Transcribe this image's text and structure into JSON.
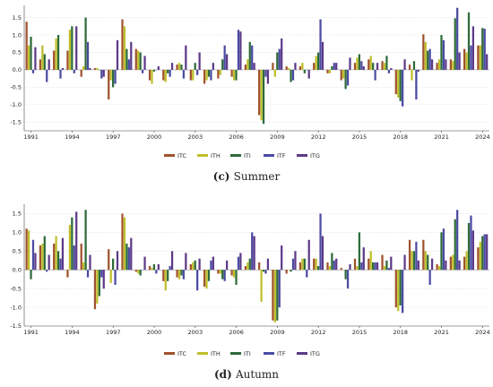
{
  "chart_data": [
    {
      "type": "bar",
      "caption_letter": "(c)",
      "caption_text": "Summer",
      "ylim": [
        -1.75,
        1.85
      ],
      "yticks": [
        -1.5,
        -1.0,
        -0.5,
        0.0,
        0.5,
        1.0,
        1.5
      ],
      "ytick_labels": [
        "-1.5",
        "-1.0",
        "-0.5",
        "0.0",
        "0.5",
        "1.0",
        "1.5"
      ],
      "grid": true,
      "legend_position": "bottom-center",
      "categories": [
        "1991",
        "1992",
        "1993",
        "1994",
        "1995",
        "1996",
        "1997",
        "1998",
        "1999",
        "2000",
        "2001",
        "2002",
        "2003",
        "2004",
        "2005",
        "2006",
        "2007",
        "2008",
        "2009",
        "2010",
        "2011",
        "2012",
        "2013",
        "2014",
        "2015",
        "2016",
        "2017",
        "2018",
        "2019",
        "2020",
        "2021",
        "2022",
        "2023",
        "2024"
      ],
      "xtick_labels": [
        "1991",
        "1994",
        "1997",
        "2000",
        "2003",
        "2006",
        "2009",
        "2012",
        "2015",
        "2018",
        "2021",
        "2024"
      ],
      "series": [
        {
          "name": "ITC",
          "color": "#a0522d",
          "values": [
            1.38,
            0.3,
            0.55,
            0.55,
            -0.2,
            0.05,
            -0.85,
            1.45,
            0.6,
            -0.3,
            -0.3,
            0.15,
            -0.3,
            -0.4,
            -0.25,
            -0.2,
            0.15,
            -1.3,
            0.2,
            0.1,
            0.1,
            0.2,
            -0.1,
            -0.3,
            0.2,
            0.3,
            0.25,
            -0.7,
            0.15,
            1.02,
            0.2,
            0.3,
            0.6,
            0.7
          ]
        },
        {
          "name": "ITH",
          "color": "#bfbf2a",
          "values": [
            0.7,
            0.7,
            0.9,
            1.15,
            0.1,
            0.05,
            -0.3,
            1.25,
            0.55,
            -0.4,
            -0.35,
            0.2,
            -0.3,
            -0.3,
            -0.15,
            -0.3,
            0.3,
            -1.45,
            -0.2,
            0.05,
            0.2,
            0.4,
            -0.1,
            -0.25,
            0.35,
            0.4,
            0.2,
            -0.8,
            -0.3,
            0.8,
            0.3,
            0.25,
            0.5,
            0.7
          ]
        },
        {
          "name": "ITI",
          "color": "#2e6b3a",
          "values": [
            0.95,
            0.45,
            1.0,
            1.25,
            1.5,
            0.0,
            -0.5,
            0.6,
            0.5,
            -0.05,
            -0.1,
            0.15,
            0.2,
            -0.2,
            0.3,
            -0.3,
            0.8,
            -1.55,
            0.5,
            -0.35,
            -0.1,
            0.5,
            0.1,
            -0.55,
            0.45,
            0.2,
            0.4,
            -0.9,
            0.25,
            0.55,
            1.0,
            1.48,
            1.65,
            1.2
          ]
        },
        {
          "name": "ITF",
          "color": "#4b4ba3",
          "values": [
            -0.1,
            -0.35,
            -0.25,
            -0.1,
            0.8,
            -0.25,
            -0.4,
            0.3,
            -0.1,
            0.0,
            -0.2,
            -0.25,
            -0.15,
            -0.3,
            0.7,
            1.15,
            0.7,
            -0.2,
            0.6,
            -0.3,
            0.0,
            1.45,
            0.2,
            -0.45,
            0.25,
            -0.3,
            -0.1,
            -1.05,
            -0.85,
            0.6,
            0.85,
            1.78,
            0.7,
            1.18
          ]
        },
        {
          "name": "ITG",
          "color": "#5d3a88",
          "values": [
            0.65,
            0.3,
            0.05,
            1.25,
            0.05,
            -0.2,
            0.85,
            0.8,
            0.4,
            0.1,
            0.2,
            0.7,
            0.5,
            0.2,
            0.45,
            1.1,
            0.2,
            -0.4,
            0.9,
            0.2,
            -0.25,
            0.8,
            0.2,
            0.35,
            0.1,
            0.2,
            0.05,
            0.3,
            -0.05,
            0.3,
            0.3,
            0.5,
            1.25,
            0.45
          ]
        }
      ]
    },
    {
      "type": "bar",
      "caption_letter": "(d)",
      "caption_text": "Autumn",
      "ylim": [
        -1.5,
        1.75
      ],
      "yticks": [
        -1.5,
        -1.0,
        -0.5,
        0.0,
        0.5,
        1.0,
        1.5
      ],
      "ytick_labels": [
        "-1.5",
        "-1.0",
        "-0.5",
        "0.0",
        "0.5",
        "1.0",
        "1.5"
      ],
      "grid": true,
      "legend_position": "bottom-center",
      "categories": [
        "1991",
        "1992",
        "1993",
        "1994",
        "1995",
        "1996",
        "1997",
        "1998",
        "1999",
        "2000",
        "2001",
        "2002",
        "2003",
        "2004",
        "2005",
        "2006",
        "2007",
        "2008",
        "2009",
        "2010",
        "2011",
        "2012",
        "2013",
        "2014",
        "2015",
        "2016",
        "2017",
        "2018",
        "2019",
        "2020",
        "2021",
        "2022",
        "2023",
        "2024"
      ],
      "xtick_labels": [
        "1991",
        "1994",
        "1997",
        "2000",
        "2003",
        "2006",
        "2009",
        "2012",
        "2015",
        "2018",
        "2021",
        "2024"
      ],
      "series": [
        {
          "name": "ITC",
          "color": "#a0522d",
          "values": [
            1.1,
            0.65,
            0.7,
            -0.2,
            0.7,
            -1.05,
            0.55,
            1.5,
            -0.05,
            0.1,
            -0.3,
            -0.2,
            0.15,
            -0.45,
            -0.1,
            -0.15,
            0.1,
            0.2,
            -1.35,
            -0.1,
            0.2,
            0.3,
            0.2,
            0.05,
            0.3,
            0.3,
            0.4,
            -1.0,
            0.8,
            0.8,
            0.15,
            0.35,
            0.35,
            0.6
          ]
        },
        {
          "name": "ITH",
          "color": "#bfbf2a",
          "values": [
            1.05,
            0.7,
            0.9,
            1.2,
            0.2,
            -0.9,
            -0.35,
            1.4,
            -0.1,
            0.05,
            -0.55,
            -0.25,
            0.2,
            -0.5,
            -0.1,
            -0.2,
            0.2,
            -0.85,
            -1.4,
            0.0,
            0.3,
            0.3,
            0.1,
            0.0,
            0.1,
            0.5,
            0.1,
            -1.1,
            0.5,
            0.5,
            0.1,
            0.4,
            0.5,
            0.75
          ]
        },
        {
          "name": "ITI",
          "color": "#2e6b3a",
          "values": [
            -0.25,
            0.9,
            0.5,
            1.4,
            1.6,
            -0.7,
            0.3,
            0.7,
            -0.15,
            0.15,
            -0.3,
            -0.15,
            0.25,
            -0.3,
            -0.25,
            -0.4,
            0.3,
            -0.05,
            -1.35,
            -0.05,
            0.3,
            0.1,
            0.45,
            -0.25,
            1.0,
            0.2,
            0.25,
            -0.95,
            0.5,
            0.4,
            1.0,
            1.35,
            1.25,
            0.9
          ]
        },
        {
          "name": "ITF",
          "color": "#4b4ba3",
          "values": [
            0.8,
            -0.05,
            0.3,
            0.65,
            -0.2,
            -0.2,
            -0.4,
            0.6,
            0.0,
            -0.1,
            0.1,
            -0.25,
            -0.55,
            0.25,
            -0.3,
            0.35,
            1.0,
            -0.1,
            -1.0,
            0.3,
            -0.2,
            1.5,
            0.25,
            -0.5,
            0.2,
            0.2,
            0.05,
            -1.15,
            0.75,
            -0.4,
            1.1,
            1.6,
            1.45,
            0.95
          ]
        },
        {
          "name": "ITG",
          "color": "#5d3a88",
          "values": [
            0.45,
            0.4,
            0.85,
            1.55,
            0.4,
            -0.5,
            0.5,
            0.85,
            0.35,
            0.15,
            0.5,
            0.45,
            0.3,
            0.35,
            0.25,
            0.45,
            0.9,
            0.3,
            0.65,
            0.5,
            0.8,
            0.9,
            0.3,
            0.15,
            0.6,
            0.2,
            0.35,
            0.4,
            0.25,
            0.3,
            0.25,
            0.25,
            1.05,
            0.95
          ]
        }
      ]
    }
  ]
}
